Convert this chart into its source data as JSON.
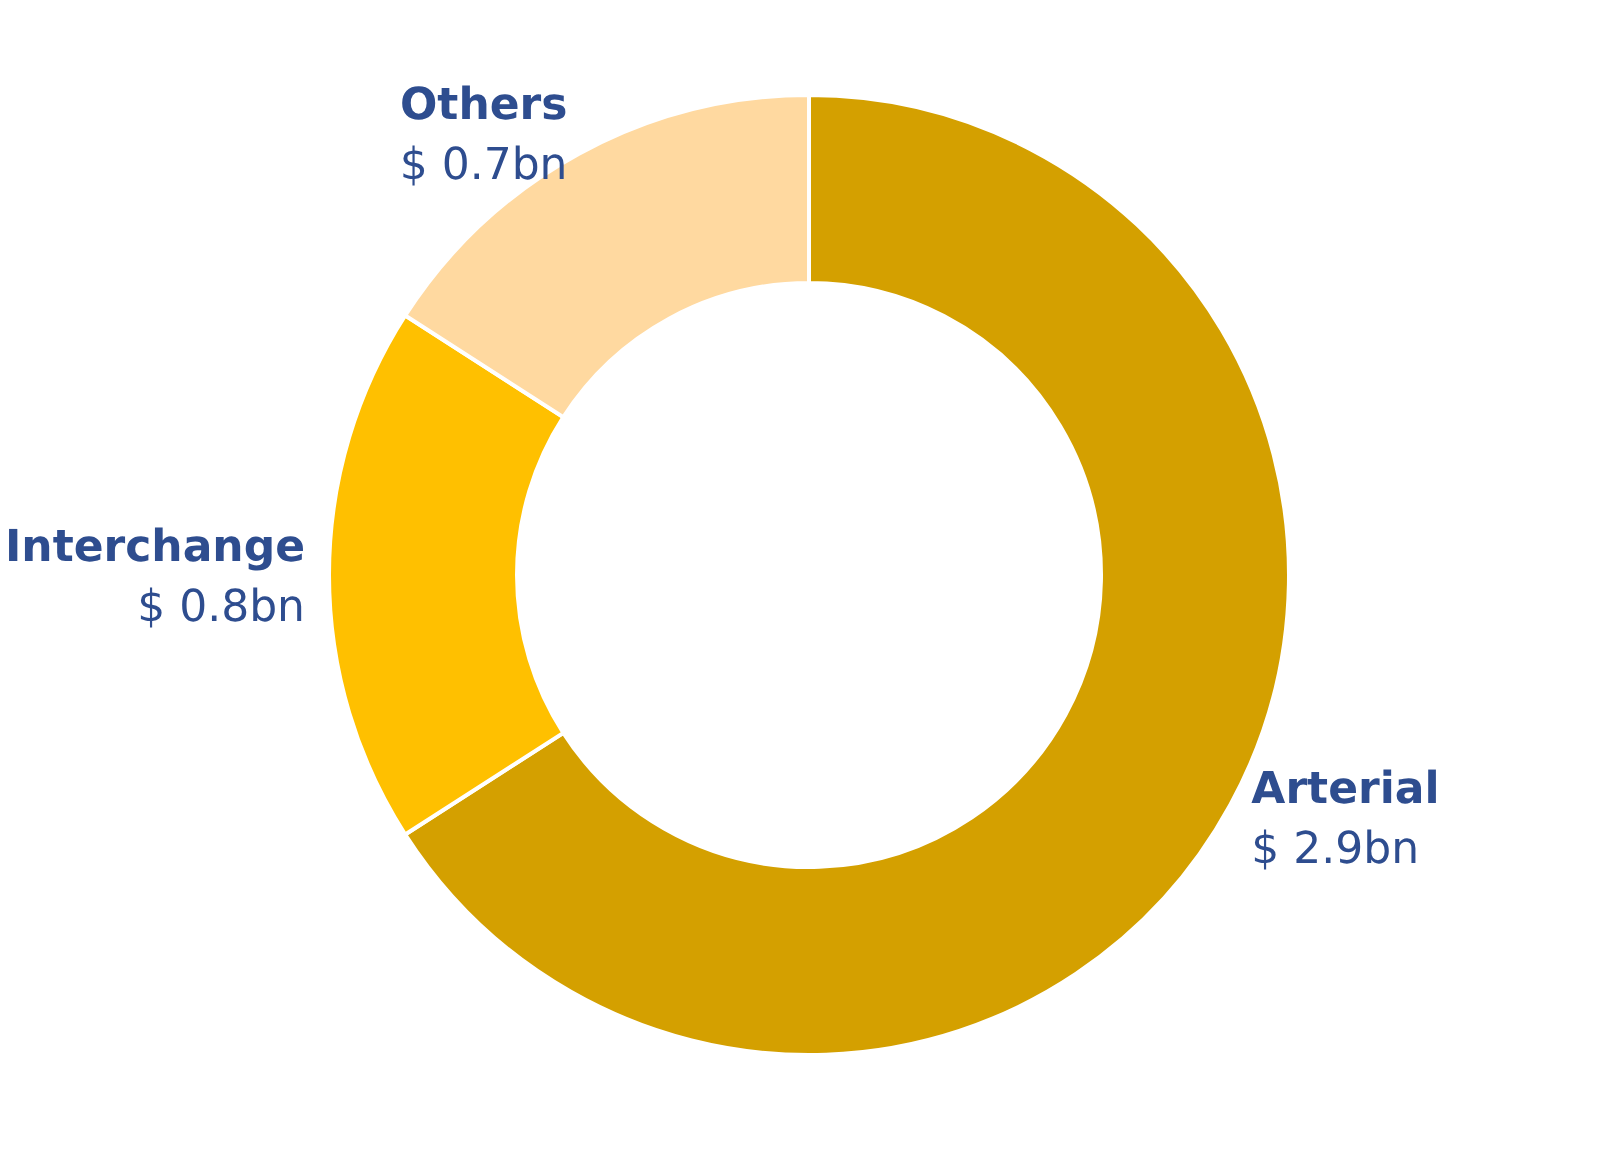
{
  "chart_data": {
    "type": "donut",
    "categories": [
      "Arterial",
      "Interchange",
      "Others"
    ],
    "values": [
      2.9,
      0.8,
      0.7
    ],
    "value_labels": [
      "$ 2.9bn",
      "$ 0.8bn",
      "$ 0.7bn"
    ],
    "colors": [
      "#d4a000",
      "#ffc000",
      "#ffd9a0"
    ]
  }
}
